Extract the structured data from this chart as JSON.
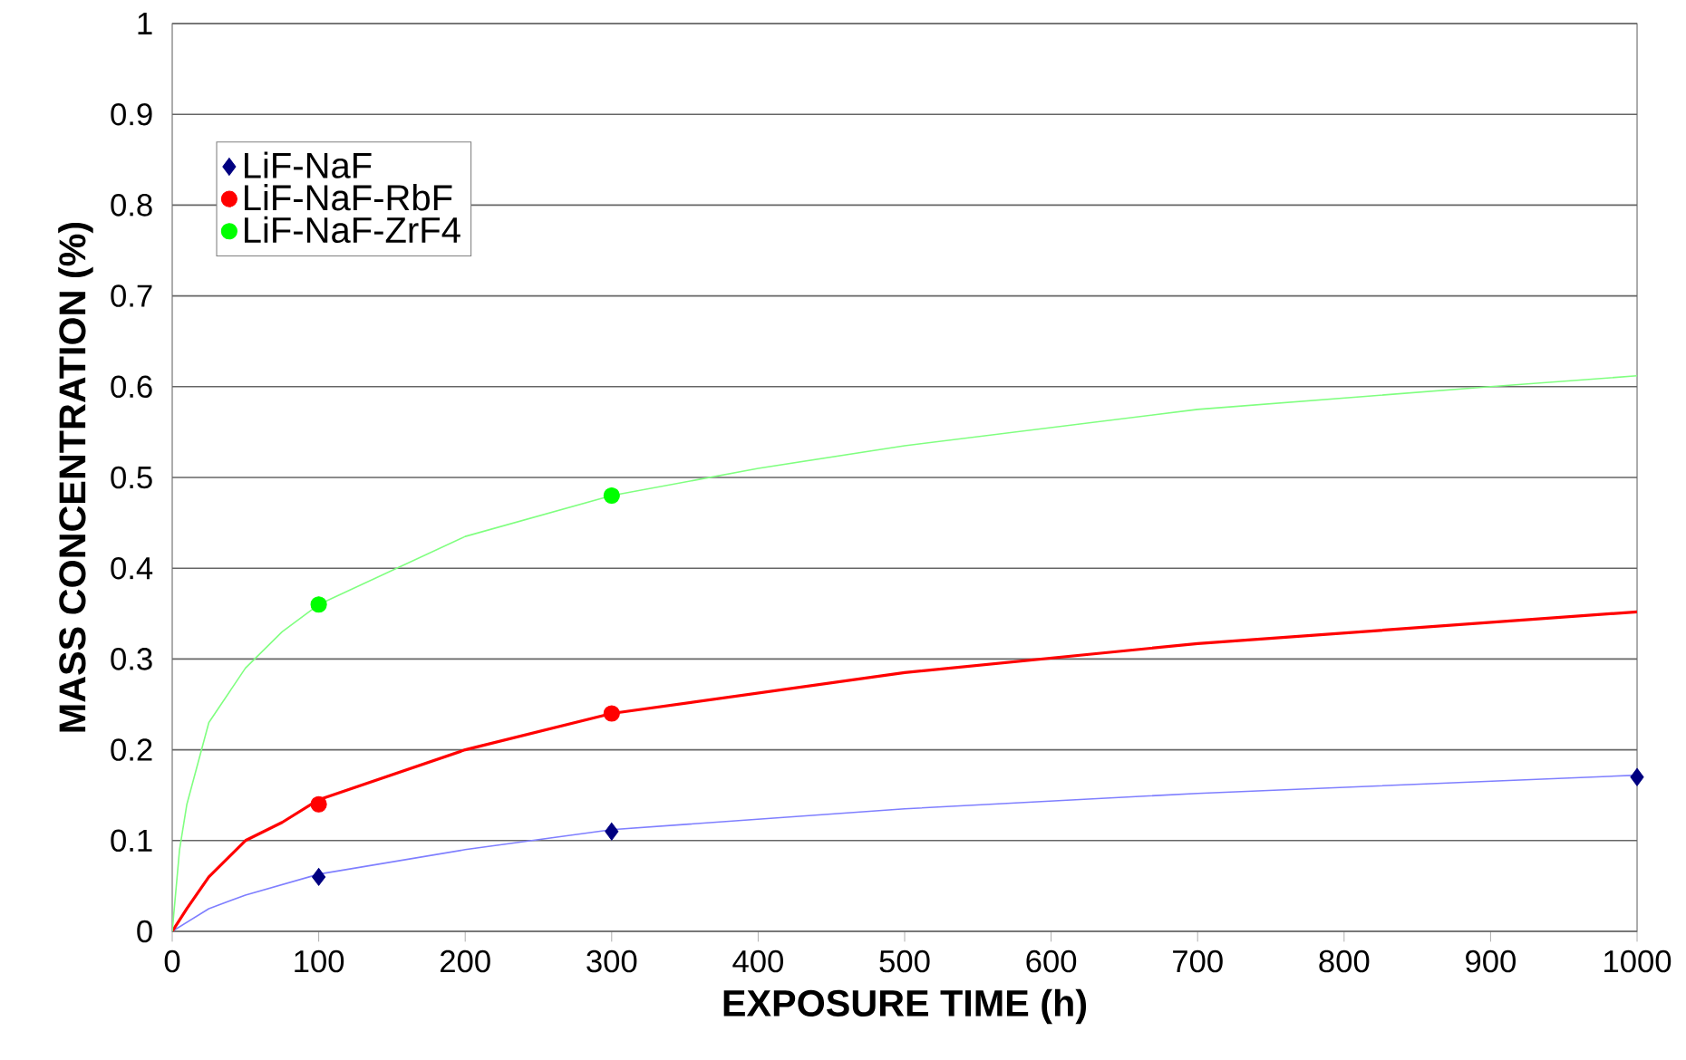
{
  "chart_data": {
    "type": "scatter",
    "xlabel": "EXPOSURE TIME (h)",
    "ylabel": "MASS CONCENTRATION (%)",
    "xlim": [
      0,
      1000
    ],
    "xticks": [
      0,
      100,
      200,
      300,
      400,
      500,
      600,
      700,
      800,
      900,
      1000
    ],
    "ylim": [
      0,
      1
    ],
    "yticks": [
      0,
      0.1,
      0.2,
      0.3,
      0.4,
      0.5,
      0.6,
      0.7,
      0.8,
      0.9,
      1
    ],
    "grid": "y",
    "legend": "top left",
    "series": [
      {
        "type": "line",
        "color": "#7f7fff",
        "marker": "none",
        "x": [
          0,
          25,
          50,
          100,
          200,
          300,
          500,
          700,
          1000
        ],
        "values": [
          0,
          0.025,
          0.04,
          0.063,
          0.09,
          0.112,
          0.135,
          0.152,
          0.172
        ]
      },
      {
        "type": "line",
        "color": "#ff0000",
        "marker": "none",
        "x": [
          0,
          10,
          25,
          50,
          75,
          100,
          200,
          300,
          500,
          700,
          1000
        ],
        "values": [
          0,
          0.025,
          0.06,
          0.1,
          0.12,
          0.145,
          0.2,
          0.24,
          0.285,
          0.317,
          0.352
        ]
      },
      {
        "type": "line",
        "color": "#80ff80",
        "marker": "none",
        "x": [
          0,
          5,
          10,
          25,
          50,
          75,
          100,
          200,
          300,
          400,
          500,
          700,
          900,
          1000
        ],
        "values": [
          0,
          0.09,
          0.14,
          0.23,
          0.29,
          0.33,
          0.36,
          0.435,
          0.48,
          0.51,
          0.535,
          0.575,
          0.6,
          0.612
        ]
      },
      {
        "name": "LiF-NaF",
        "color": "#000080",
        "marker": "diamond",
        "x": [
          100,
          300,
          1000
        ],
        "values": [
          0.06,
          0.11,
          0.17
        ]
      },
      {
        "name": "LiF-NaF-RbF",
        "color": "#ff0000",
        "marker": "circle",
        "x": [
          100,
          300
        ],
        "values": [
          0.14,
          0.24
        ]
      },
      {
        "name": "LiF-NaF-ZrF4",
        "color": "#00ff00",
        "marker": "circle",
        "x": [
          100,
          300
        ],
        "values": [
          0.36,
          0.48
        ]
      }
    ]
  }
}
